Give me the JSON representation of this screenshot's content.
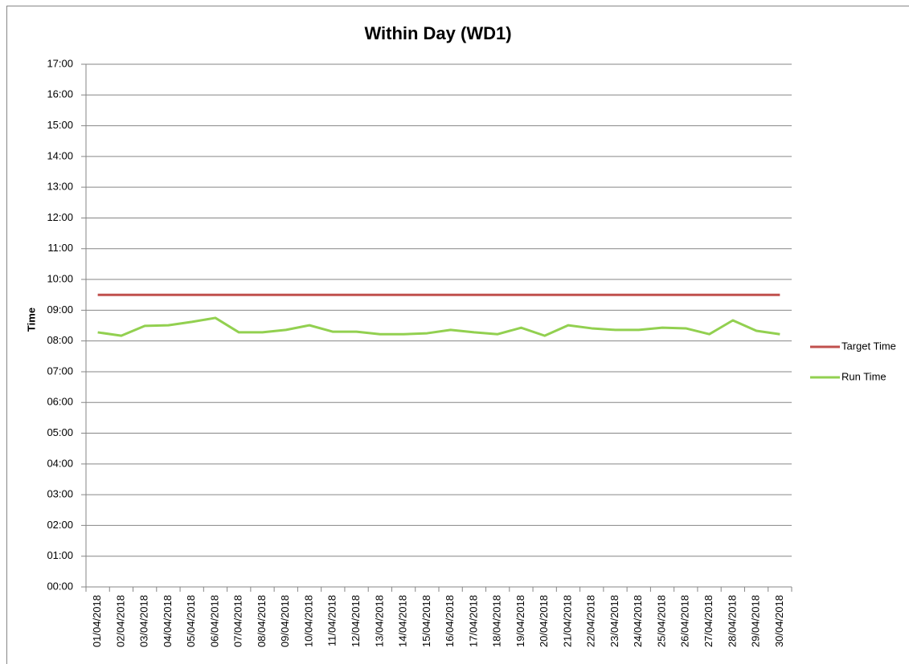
{
  "chart_data": {
    "type": "line",
    "title": "Within Day (WD1)",
    "y_label": "Time",
    "categories": [
      "01/04/2018",
      "02/04/2018",
      "03/04/2018",
      "04/04/2018",
      "05/04/2018",
      "06/04/2018",
      "07/04/2018",
      "08/04/2018",
      "09/04/2018",
      "10/04/2018",
      "11/04/2018",
      "12/04/2018",
      "13/04/2018",
      "14/04/2018",
      "15/04/2018",
      "16/04/2018",
      "17/04/2018",
      "18/04/2018",
      "19/04/2018",
      "20/04/2018",
      "21/04/2018",
      "22/04/2018",
      "23/04/2018",
      "24/04/2018",
      "25/04/2018",
      "26/04/2018",
      "27/04/2018",
      "28/04/2018",
      "29/04/2018",
      "30/04/2018"
    ],
    "series": [
      {
        "name": "Target Time",
        "color": "#c0504d",
        "values": [
          9.5,
          9.5,
          9.5,
          9.5,
          9.5,
          9.5,
          9.5,
          9.5,
          9.5,
          9.5,
          9.5,
          9.5,
          9.5,
          9.5,
          9.5,
          9.5,
          9.5,
          9.5,
          9.5,
          9.5,
          9.5,
          9.5,
          9.5,
          9.5,
          9.5,
          9.5,
          9.5,
          9.5,
          9.5,
          9.5
        ]
      },
      {
        "name": "Run Time",
        "color": "#92d050",
        "values": [
          8.28,
          8.17,
          8.49,
          8.51,
          8.62,
          8.75,
          8.28,
          8.28,
          8.36,
          8.51,
          8.3,
          8.3,
          8.22,
          8.22,
          8.25,
          8.36,
          8.28,
          8.22,
          8.43,
          8.17,
          8.51,
          8.41,
          8.36,
          8.36,
          8.43,
          8.41,
          8.22,
          8.67,
          8.33,
          8.22
        ]
      }
    ],
    "ylim": [
      0,
      17
    ],
    "yticks": [
      {
        "value": 0,
        "label": "00:00"
      },
      {
        "value": 1,
        "label": "01:00"
      },
      {
        "value": 2,
        "label": "02:00"
      },
      {
        "value": 3,
        "label": "03:00"
      },
      {
        "value": 4,
        "label": "04:00"
      },
      {
        "value": 5,
        "label": "05:00"
      },
      {
        "value": 6,
        "label": "06:00"
      },
      {
        "value": 7,
        "label": "07:00"
      },
      {
        "value": 8,
        "label": "08:00"
      },
      {
        "value": 9,
        "label": "09:00"
      },
      {
        "value": 10,
        "label": "10:00"
      },
      {
        "value": 11,
        "label": "11:00"
      },
      {
        "value": 12,
        "label": "12:00"
      },
      {
        "value": 13,
        "label": "13:00"
      },
      {
        "value": 14,
        "label": "14:00"
      },
      {
        "value": 15,
        "label": "15:00"
      },
      {
        "value": 16,
        "label": "16:00"
      },
      {
        "value": 17,
        "label": "17:00"
      }
    ],
    "grid": true,
    "legend": "right"
  }
}
